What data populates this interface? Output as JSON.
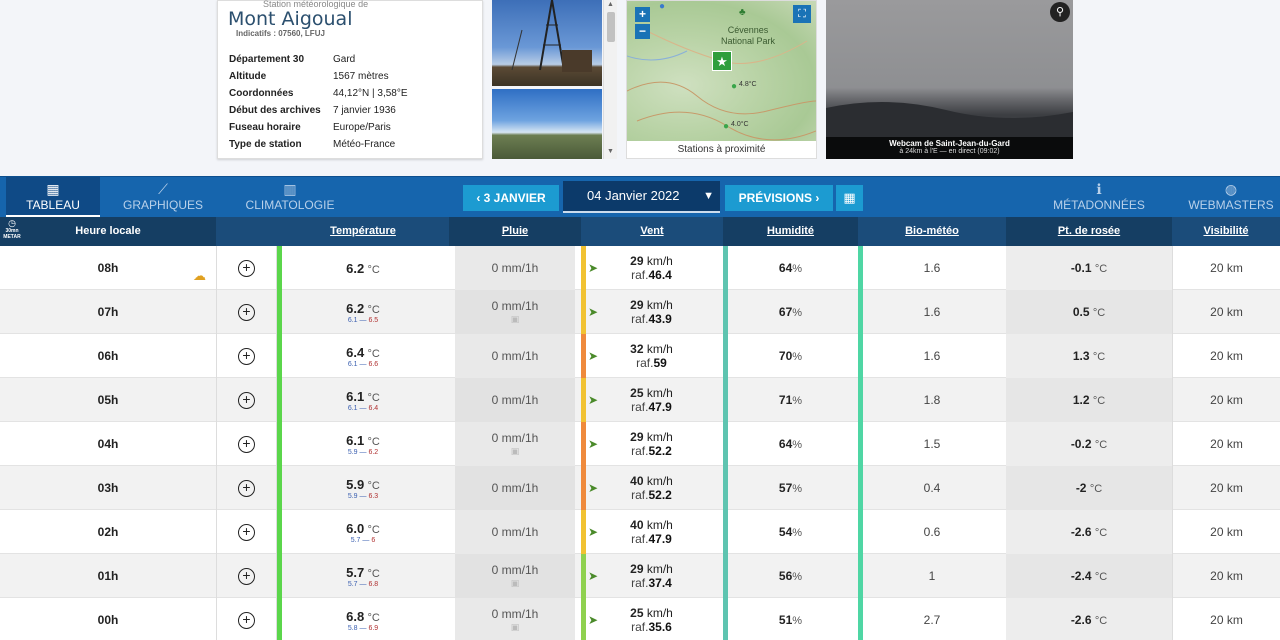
{
  "station": {
    "subtitle": "Station météorologique de",
    "name": "Mont Aigoual",
    "codes": "Indicatifs : 07560, LFUJ",
    "details": [
      {
        "key": "Département 30",
        "value": "Gard"
      },
      {
        "key": "Altitude",
        "value": "1567 mètres"
      },
      {
        "key": "Coordonnées",
        "value": "44,12°N | 3,58°E"
      },
      {
        "key": "Début des archives",
        "value": "7 janvier 1936"
      },
      {
        "key": "Fuseau horaire",
        "value": "Europe/Paris"
      },
      {
        "key": "Type de station",
        "value": "Météo-France"
      }
    ]
  },
  "map": {
    "park_label_1": "Cévennes",
    "park_label_2": "National Park",
    "zoom_in": "+",
    "zoom_out": "−",
    "pin1": "4.8°C",
    "pin2": "4.0°C",
    "caption": "Stations à proximité"
  },
  "webcam": {
    "title": "Webcam de Saint-Jean-du-Gard",
    "subtitle": "à 24km à l'E — en direct (09:02)"
  },
  "nav": {
    "tabs": [
      {
        "label": "TABLEAU",
        "icon": "▦"
      },
      {
        "label": "GRAPHIQUES",
        "icon": "⟋"
      },
      {
        "label": "CLIMATOLOGIE",
        "icon": "▥"
      }
    ],
    "prev_label": "3 JANVIER",
    "date_label": "04 Janvier 2022",
    "next_label": "PRÉVISIONS",
    "calendar_icon": "calendar-icon",
    "right_tabs": [
      {
        "label": "MÉTADONNÉES",
        "icon": "ℹ"
      },
      {
        "label": "WEBMASTERS",
        "icon": "◍"
      }
    ]
  },
  "table": {
    "metar_label_1": "30mn",
    "metar_label_2": "METAR",
    "headers": {
      "hour": "Heure locale",
      "temp": "Température",
      "rain": "Pluie",
      "wind": "Vent",
      "hum": "Humidité",
      "bio": "Bio-météo",
      "dew": "Pt. de rosée",
      "vis": "Visibilité"
    },
    "rows": [
      {
        "hour": "08h",
        "temp": "6.2",
        "tmin": "",
        "tmax": "",
        "rain": "0 mm/1h",
        "rain_sub": false,
        "wind": "29",
        "gust": "46.4",
        "hum": "64",
        "bio": "1.6",
        "dew": "-0.1",
        "vis": "20 km",
        "wind_color": "#f1c232",
        "temp_color": "#5bd64b",
        "hum_color": "#5ec4b0",
        "bio_color": "#4fd6a4",
        "dew_color": "#4fe0e8"
      },
      {
        "hour": "07h",
        "temp": "6.2",
        "tmin": "6.1",
        "tmax": "6.5",
        "rain": "0 mm/1h",
        "rain_sub": true,
        "wind": "29",
        "gust": "43.9",
        "hum": "67",
        "bio": "1.6",
        "dew": "0.5",
        "vis": "20 km",
        "wind_color": "#f1c232",
        "temp_color": "#5bd64b",
        "hum_color": "#5ec4b0",
        "bio_color": "#4fd6a4",
        "dew_color": "#4fe0e8"
      },
      {
        "hour": "06h",
        "temp": "6.4",
        "tmin": "6.1",
        "tmax": "6.6",
        "rain": "0 mm/1h",
        "rain_sub": false,
        "wind": "32",
        "gust": "59",
        "hum": "70",
        "bio": "1.6",
        "dew": "1.3",
        "vis": "20 km",
        "wind_color": "#ef8a3c",
        "temp_color": "#5bd64b",
        "hum_color": "#5ec4b0",
        "bio_color": "#4fd6a4",
        "dew_color": "#4fe0e8"
      },
      {
        "hour": "05h",
        "temp": "6.1",
        "tmin": "6.1",
        "tmax": "6.4",
        "rain": "0 mm/1h",
        "rain_sub": false,
        "wind": "25",
        "gust": "47.9",
        "hum": "71",
        "bio": "1.8",
        "dew": "1.2",
        "vis": "20 km",
        "wind_color": "#f1c232",
        "temp_color": "#5bd64b",
        "hum_color": "#5ec4b0",
        "bio_color": "#4fd6a4",
        "dew_color": "#4fe0e8"
      },
      {
        "hour": "04h",
        "temp": "6.1",
        "tmin": "5.9",
        "tmax": "6.2",
        "rain": "0 mm/1h",
        "rain_sub": true,
        "wind": "29",
        "gust": "52.2",
        "hum": "64",
        "bio": "1.5",
        "dew": "-0.2",
        "vis": "20 km",
        "wind_color": "#ef8a3c",
        "temp_color": "#5bd64b",
        "hum_color": "#5ec4b0",
        "bio_color": "#4fd6a4",
        "dew_color": "#4fe0e8"
      },
      {
        "hour": "03h",
        "temp": "5.9",
        "tmin": "5.9",
        "tmax": "6.3",
        "rain": "0 mm/1h",
        "rain_sub": false,
        "wind": "40",
        "gust": "52.2",
        "hum": "57",
        "bio": "0.4",
        "dew": "-2",
        "vis": "20 km",
        "wind_color": "#ef8a3c",
        "temp_color": "#5bd64b",
        "hum_color": "#5ec4b0",
        "bio_color": "#4fd6a4",
        "dew_color": "#4fb4ea"
      },
      {
        "hour": "02h",
        "temp": "6.0",
        "tmin": "5.7",
        "tmax": "6",
        "rain": "0 mm/1h",
        "rain_sub": false,
        "wind": "40",
        "gust": "47.9",
        "hum": "54",
        "bio": "0.6",
        "dew": "-2.6",
        "vis": "20 km",
        "wind_color": "#f1c232",
        "temp_color": "#5bd64b",
        "hum_color": "#5ec4b0",
        "bio_color": "#4fd6a4",
        "dew_color": "#4fb4ea"
      },
      {
        "hour": "01h",
        "temp": "5.7",
        "tmin": "5.7",
        "tmax": "6.8",
        "rain": "0 mm/1h",
        "rain_sub": true,
        "wind": "29",
        "gust": "37.4",
        "hum": "56",
        "bio": "1",
        "dew": "-2.4",
        "vis": "20 km",
        "wind_color": "#8fd14f",
        "temp_color": "#5bd64b",
        "hum_color": "#5ec4b0",
        "bio_color": "#4fd6a4",
        "dew_color": "#4fb4ea"
      },
      {
        "hour": "00h",
        "temp": "6.8",
        "tmin": "5.8",
        "tmax": "6.9",
        "rain": "0 mm/1h",
        "rain_sub": true,
        "wind": "25",
        "gust": "35.6",
        "hum": "51",
        "bio": "2.7",
        "dew": "-2.6",
        "vis": "20 km",
        "wind_color": "#8fd14f",
        "temp_color": "#5bd64b",
        "hum_color": "#5ec4b0",
        "bio_color": "#4fd6a4",
        "dew_color": "#4fb4ea"
      }
    ],
    "unit_temp": "°C",
    "unit_hum": "%",
    "unit_wind": "km/h",
    "gust_prefix": "raf.",
    "range_sep": "—"
  }
}
